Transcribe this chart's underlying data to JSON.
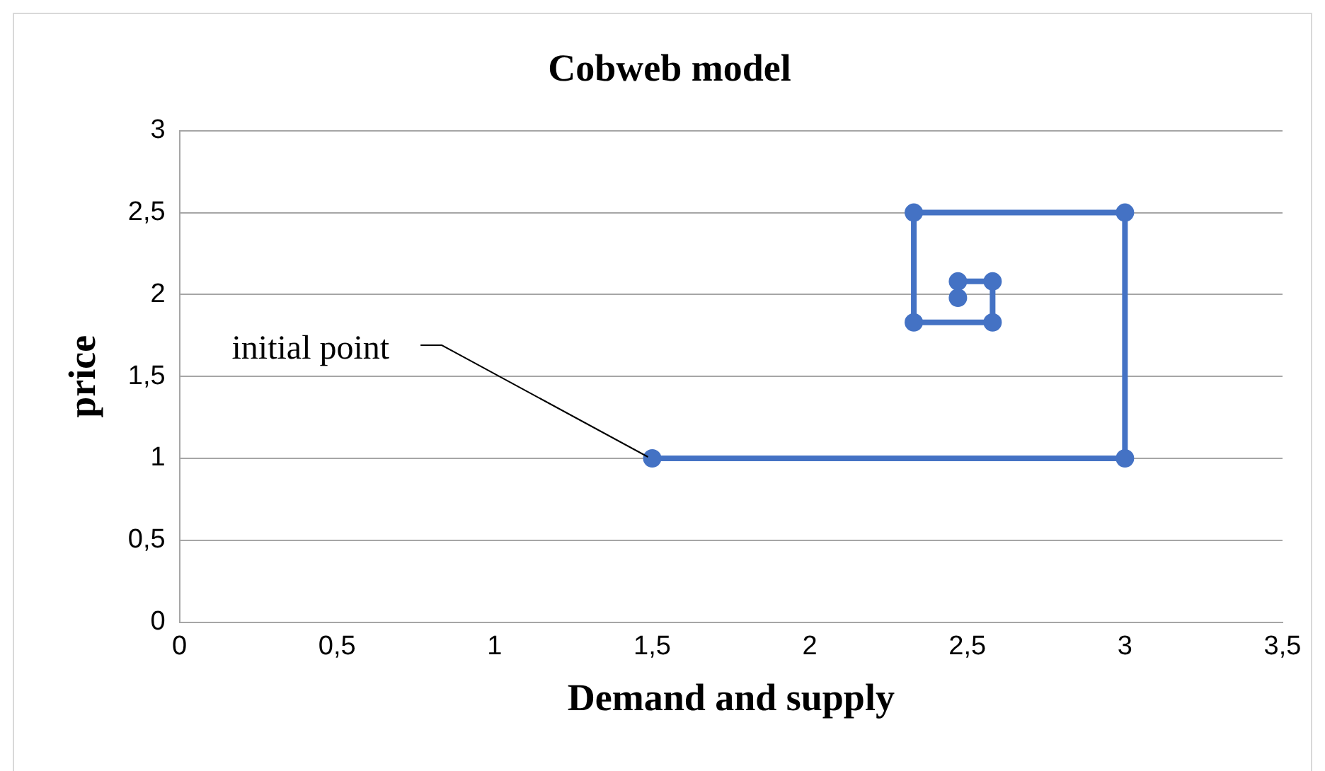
{
  "chart_data": {
    "type": "line",
    "title": "Cobweb model",
    "xlabel": "Demand and supply",
    "ylabel": "price",
    "x": [
      1.5,
      3,
      3,
      2.33,
      2.33,
      2.58,
      2.58,
      2.47,
      2.47
    ],
    "series": [
      {
        "color": "#4472c4",
        "values": [
          1,
          1,
          2.5,
          2.5,
          1.83,
          1.83,
          2.08,
          2.08,
          1.98
        ]
      }
    ],
    "xlim": [
      0,
      3.5
    ],
    "xticks": [
      0,
      {
        "value": 0.5,
        "label": "0,5"
      },
      1,
      {
        "value": 1.5,
        "label": "1,5"
      },
      2,
      {
        "value": 2.5,
        "label": "2,5"
      },
      3,
      {
        "value": 3.5,
        "label": "3,5"
      }
    ],
    "ylim": [
      0,
      3
    ],
    "yticks": [
      0,
      {
        "value": 0.5,
        "label": "0,5"
      },
      1,
      {
        "value": 1.5,
        "label": "1,5"
      },
      2,
      {
        "value": 2.5,
        "label": "2,5"
      },
      3
    ],
    "grid": "y",
    "marker": "circle",
    "line_style": "solid",
    "legend": false,
    "annotations": [
      {
        "text": "initial point",
        "x": 1.5,
        "y": 1
      }
    ]
  }
}
